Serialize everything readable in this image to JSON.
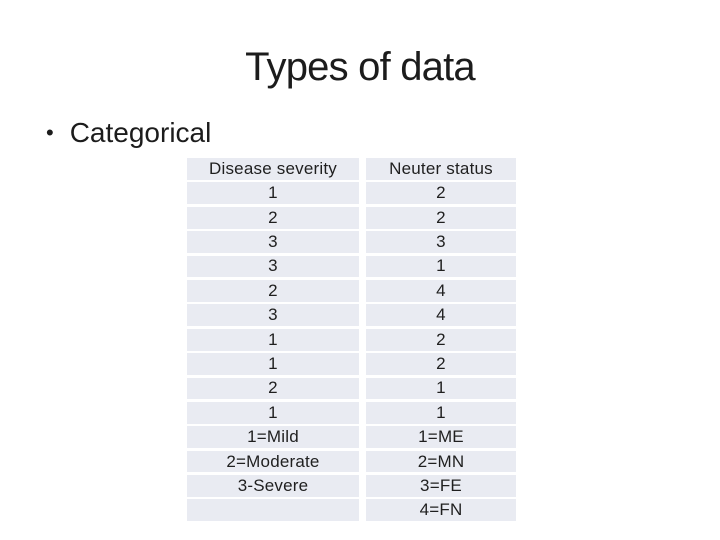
{
  "slide": {
    "title": "Types of data",
    "bullet_glyph": "•",
    "bullet_text": "Categorical"
  },
  "table": {
    "columns": [
      {
        "header": "Disease severity",
        "values": [
          "1",
          "2",
          "3",
          "3",
          "2",
          "3",
          "1",
          "1",
          "2",
          "1"
        ],
        "legend": [
          "1=Mild",
          "2=Moderate",
          "3-Severe",
          ""
        ]
      },
      {
        "header": "Neuter status",
        "values": [
          "2",
          "2",
          "3",
          "1",
          "4",
          "4",
          "2",
          "2",
          "1",
          "1"
        ],
        "legend": [
          "1=ME",
          "2=MN",
          "3=FE",
          "4=FN"
        ]
      }
    ],
    "style": {
      "cell_fill": "#E9EBF2",
      "text_color": "#1F1F1F",
      "background": "#FFFFFF"
    }
  }
}
